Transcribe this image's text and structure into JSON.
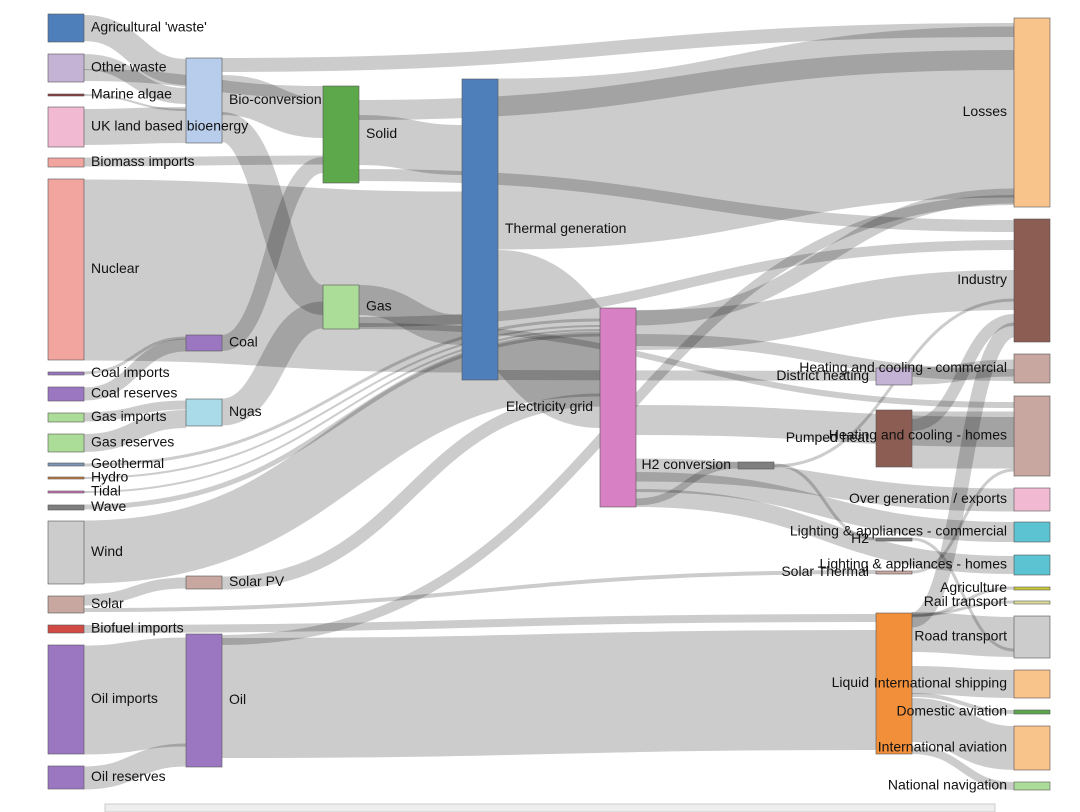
{
  "nodes": [
    {
      "label": "Agricultural 'waste'",
      "color": "#4e7fbb"
    },
    {
      "label": "Other waste",
      "color": "#c5b3d6"
    },
    {
      "label": "Marine algae",
      "color": "#8c3c3c"
    },
    {
      "label": "UK land based bioenergy",
      "color": "#f2bad2"
    },
    {
      "label": "Biomass imports",
      "color": "#f2a49e"
    },
    {
      "label": "Nuclear",
      "color": "#f2a49e"
    },
    {
      "label": "Coal imports",
      "color": "#9b77c2"
    },
    {
      "label": "Coal reserves",
      "color": "#9b77c2"
    },
    {
      "label": "Gas imports",
      "color": "#acdd98"
    },
    {
      "label": "Gas reserves",
      "color": "#acdd98"
    },
    {
      "label": "Geothermal",
      "color": "#7f95b5"
    },
    {
      "label": "Hydro",
      "color": "#c97a3a"
    },
    {
      "label": "Tidal",
      "color": "#d070b8"
    },
    {
      "label": "Wave",
      "color": "#7f7f7f"
    },
    {
      "label": "Wind",
      "color": "#cccccc"
    },
    {
      "label": "Solar",
      "color": "#c7a7a0"
    },
    {
      "label": "Biofuel imports",
      "color": "#d14a44"
    },
    {
      "label": "Oil imports",
      "color": "#9b77c2"
    },
    {
      "label": "Oil reserves",
      "color": "#9b77c2"
    },
    {
      "label": "Bio-conversion",
      "color": "#b8cdec"
    },
    {
      "label": "Coal",
      "color": "#9b77c2"
    },
    {
      "label": "Ngas",
      "color": "#aadbe8"
    },
    {
      "label": "Solar PV",
      "color": "#c7a7a0"
    },
    {
      "label": "Oil",
      "color": "#9b77c2"
    },
    {
      "label": "Solid",
      "color": "#5ea84c"
    },
    {
      "label": "Gas",
      "color": "#acdd98"
    },
    {
      "label": "Thermal generation",
      "color": "#4e7fbb"
    },
    {
      "label": "Electricity grid",
      "color": "#d880c4"
    },
    {
      "label": "H2 conversion",
      "color": "#7f7f7f"
    },
    {
      "label": "District heating",
      "color": "#c5b3d6"
    },
    {
      "label": "Pumped heat",
      "color": "#8c5d52"
    },
    {
      "label": "H2",
      "color": "#7f7f7f"
    },
    {
      "label": "Solar Thermal",
      "color": "#c7a7a0"
    },
    {
      "label": "Liquid",
      "color": "#f28f3b"
    },
    {
      "label": "Losses",
      "color": "#f8c48c"
    },
    {
      "label": "Industry",
      "color": "#8c5d52"
    },
    {
      "label": "Heating and cooling - commercial",
      "color": "#c7a7a0"
    },
    {
      "label": "Heating and cooling - homes",
      "color": "#c7a7a0"
    },
    {
      "label": "Over generation / exports",
      "color": "#f2bad2"
    },
    {
      "label": "Lighting & appliances - commercial",
      "color": "#5bc3d1"
    },
    {
      "label": "Lighting & appliances - homes",
      "color": "#5bc3d1"
    },
    {
      "label": "Agriculture",
      "color": "#c8c83c"
    },
    {
      "label": "Rail transport",
      "color": "#dede9a"
    },
    {
      "label": "Road transport",
      "color": "#cccccc"
    },
    {
      "label": "International shipping",
      "color": "#f8c48c"
    },
    {
      "label": "Domestic aviation",
      "color": "#5ea84c"
    },
    {
      "label": "International aviation",
      "color": "#f8c48c"
    },
    {
      "label": "National navigation",
      "color": "#acdd98"
    }
  ]
}
